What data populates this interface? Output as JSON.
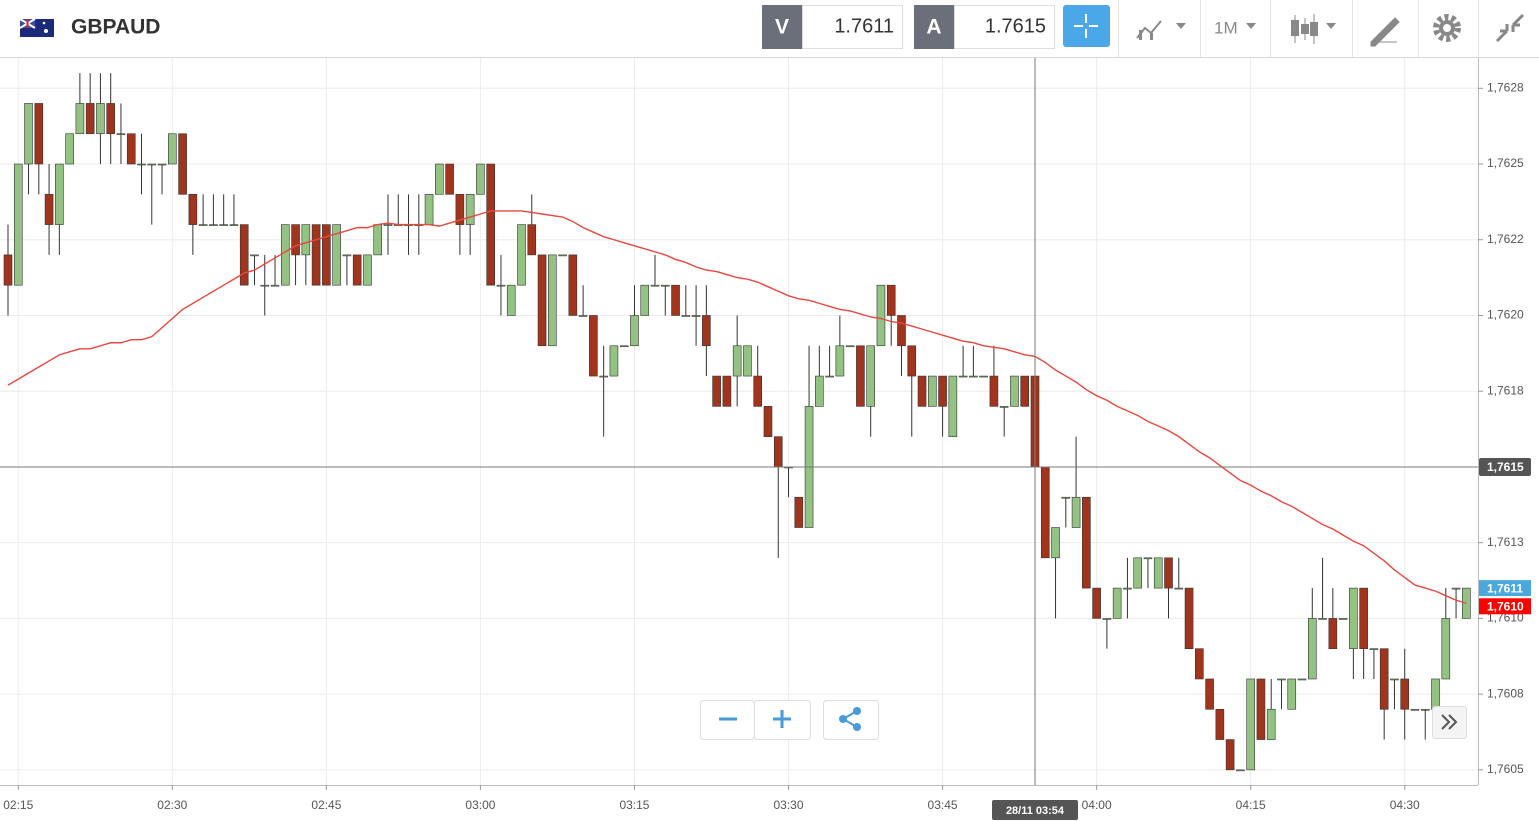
{
  "toolbar": {
    "symbol": "GBPAUD",
    "bid_label": "V",
    "bid": "1.7611",
    "ask_label": "A",
    "ask": "1.7615",
    "timeframe": "1M"
  },
  "chart_data": {
    "type": "candlestick",
    "categories": [
      null,
      "02:15",
      null,
      null,
      null,
      null,
      null,
      null,
      null,
      null,
      null,
      null,
      null,
      null,
      null,
      null,
      "02:30",
      null,
      null,
      null,
      null,
      null,
      null,
      null,
      null,
      null,
      null,
      null,
      null,
      null,
      null,
      "02:45",
      null,
      null,
      null,
      null,
      null,
      null,
      null,
      null,
      null,
      null,
      null,
      null,
      null,
      null,
      "03:00",
      null,
      null,
      null,
      null,
      null,
      null,
      null,
      null,
      null,
      null,
      null,
      null,
      null,
      null,
      "03:15",
      null,
      null,
      null,
      null,
      null,
      null,
      null,
      null,
      null,
      null,
      null,
      null,
      null,
      null,
      "03:30",
      null,
      null,
      null,
      null,
      null,
      null,
      null,
      null,
      null,
      null,
      null,
      null,
      null,
      null,
      "03:45",
      null,
      null,
      null,
      null,
      null,
      null,
      null,
      null,
      null,
      null,
      null,
      null,
      null,
      null,
      "04:00",
      null,
      null,
      null,
      null,
      null,
      null,
      null,
      null,
      null,
      null,
      null,
      null,
      null,
      null,
      "04:15",
      null,
      null,
      null,
      null,
      null,
      null,
      null,
      null,
      null,
      null,
      null,
      null,
      null,
      null,
      "04:30",
      null,
      null,
      null,
      null,
      null,
      null
    ],
    "open": [
      1.7622,
      1.7621,
      1.7625,
      1.7627,
      1.7624,
      1.7623,
      1.7625,
      1.7626,
      1.7627,
      1.7626,
      1.7627,
      1.7626,
      1.7626,
      1.7625,
      1.7625,
      1.7625,
      1.7625,
      1.7626,
      1.7624,
      1.7623,
      1.7623,
      1.7623,
      1.7623,
      1.7623,
      1.7622,
      1.7621,
      1.7621,
      1.7621,
      1.7623,
      1.7622,
      1.7623,
      1.7623,
      1.7621,
      1.7622,
      1.7622,
      1.7621,
      1.7622,
      1.7623,
      1.7623,
      1.7623,
      1.7623,
      1.7623,
      1.7624,
      1.7625,
      1.7624,
      1.7623,
      1.7624,
      1.7625,
      1.7621,
      1.762,
      1.7621,
      1.7623,
      1.7622,
      1.7619,
      1.7622,
      1.7622,
      1.762,
      1.762,
      1.7618,
      1.7618,
      1.7619,
      1.7619,
      1.762,
      1.7621,
      1.7621,
      1.7621,
      1.762,
      1.762,
      1.762,
      1.7618,
      1.7618,
      1.7618,
      1.7618,
      1.7618,
      1.7617,
      1.7616,
      1.7615,
      1.7614,
      1.7613,
      1.7617,
      1.7618,
      1.7618,
      1.7619,
      1.7619,
      1.7617,
      1.7619,
      1.7621,
      1.762,
      1.7619,
      1.7618,
      1.7617,
      1.7618,
      1.7616,
      1.7618,
      1.7618,
      1.7618,
      1.7618,
      1.7617,
      1.7617,
      1.7618,
      1.7618,
      1.7615,
      1.7612,
      1.7614,
      1.7613,
      1.7614,
      1.7611,
      1.761,
      1.761,
      1.7611,
      1.7611,
      1.7612,
      1.7611,
      1.7612,
      1.7611,
      1.7611,
      1.7609,
      1.7608,
      1.7607,
      1.7606,
      1.7605,
      1.7605,
      1.7608,
      1.7606,
      1.7608,
      1.7607,
      1.7608,
      1.7608,
      1.761,
      1.761,
      1.761,
      1.7609,
      1.7611,
      1.7609,
      1.7609,
      1.7608,
      1.7608,
      1.7607,
      1.7607,
      1.7607,
      1.7608,
      1.7611,
      1.761
    ],
    "high": [
      1.7623,
      1.7625,
      1.7627,
      1.7627,
      1.7625,
      1.7625,
      1.7626,
      1.7628,
      1.7628,
      1.7628,
      1.7628,
      1.7627,
      1.7626,
      1.7626,
      1.7625,
      1.7625,
      1.7626,
      1.7626,
      1.7624,
      1.7624,
      1.7624,
      1.7624,
      1.7624,
      1.7623,
      1.7622,
      1.7622,
      1.7622,
      1.7623,
      1.7623,
      1.7623,
      1.7623,
      1.7623,
      1.7623,
      1.7622,
      1.7622,
      1.7622,
      1.7623,
      1.7624,
      1.7624,
      1.7624,
      1.7624,
      1.7624,
      1.7625,
      1.7625,
      1.7624,
      1.7624,
      1.7625,
      1.7625,
      1.7622,
      1.7621,
      1.7623,
      1.7624,
      1.7622,
      1.7622,
      1.7622,
      1.7622,
      1.7621,
      1.762,
      1.7619,
      1.7619,
      1.7619,
      1.7621,
      1.7621,
      1.7622,
      1.7621,
      1.7621,
      1.7621,
      1.7621,
      1.7621,
      1.7618,
      1.7618,
      1.762,
      1.7619,
      1.7619,
      1.7617,
      1.7616,
      1.7615,
      1.7614,
      1.7619,
      1.7619,
      1.7619,
      1.762,
      1.7619,
      1.7619,
      1.7619,
      1.7621,
      1.7621,
      1.762,
      1.7619,
      1.7618,
      1.7618,
      1.7618,
      1.7618,
      1.7619,
      1.7619,
      1.7618,
      1.7619,
      1.7617,
      1.7618,
      1.7618,
      1.7618,
      1.7615,
      1.7613,
      1.7614,
      1.7616,
      1.7614,
      1.7611,
      1.761,
      1.7611,
      1.7612,
      1.7612,
      1.7612,
      1.7612,
      1.7612,
      1.7612,
      1.7611,
      1.7609,
      1.7608,
      1.7607,
      1.7606,
      1.7605,
      1.7608,
      1.7608,
      1.7608,
      1.7608,
      1.7608,
      1.7608,
      1.7611,
      1.7612,
      1.7611,
      1.761,
      1.7611,
      1.7611,
      1.7609,
      1.7609,
      1.7608,
      1.7609,
      1.7607,
      1.7607,
      1.7608,
      1.7611,
      1.7611,
      1.7611
    ],
    "low": [
      1.762,
      1.7621,
      1.7624,
      1.7624,
      1.7622,
      1.7622,
      1.7625,
      1.7626,
      1.7626,
      1.7625,
      1.7625,
      1.7625,
      1.7625,
      1.7624,
      1.7623,
      1.7624,
      1.7625,
      1.7624,
      1.7622,
      1.7623,
      1.7623,
      1.7623,
      1.7623,
      1.7621,
      1.7621,
      1.762,
      1.7621,
      1.7621,
      1.7621,
      1.7621,
      1.7621,
      1.7621,
      1.7621,
      1.7621,
      1.7621,
      1.7621,
      1.7622,
      1.7622,
      1.7623,
      1.7622,
      1.7622,
      1.7623,
      1.7624,
      1.7624,
      1.7622,
      1.7622,
      1.7624,
      1.7621,
      1.762,
      1.762,
      1.7621,
      1.7622,
      1.7619,
      1.7619,
      1.7622,
      1.762,
      1.762,
      1.7618,
      1.7616,
      1.7618,
      1.7619,
      1.7619,
      1.762,
      1.7621,
      1.762,
      1.762,
      1.762,
      1.7619,
      1.7618,
      1.7617,
      1.7617,
      1.7617,
      1.7618,
      1.7617,
      1.7616,
      1.7612,
      1.7614,
      1.7613,
      1.7613,
      1.7617,
      1.7618,
      1.7618,
      1.7619,
      1.7617,
      1.7616,
      1.7619,
      1.7619,
      1.7618,
      1.7616,
      1.7617,
      1.7617,
      1.7616,
      1.7616,
      1.7618,
      1.7618,
      1.7618,
      1.7617,
      1.7616,
      1.7617,
      1.7617,
      1.7615,
      1.7612,
      1.761,
      1.7613,
      1.7613,
      1.7611,
      1.761,
      1.7609,
      1.761,
      1.761,
      1.7611,
      1.7611,
      1.7611,
      1.761,
      1.7611,
      1.7609,
      1.7608,
      1.7607,
      1.7606,
      1.7605,
      1.7605,
      1.7605,
      1.7606,
      1.7606,
      1.7607,
      1.7607,
      1.7608,
      1.7608,
      1.761,
      1.7609,
      1.761,
      1.7608,
      1.7608,
      1.7608,
      1.7606,
      1.7607,
      1.7606,
      1.7607,
      1.7606,
      1.7607,
      1.7608,
      1.761,
      1.761
    ],
    "close": [
      1.7621,
      1.7625,
      1.7627,
      1.7625,
      1.7623,
      1.7625,
      1.7626,
      1.7627,
      1.7626,
      1.7627,
      1.7626,
      1.7626,
      1.7625,
      1.7625,
      1.7625,
      1.7625,
      1.7626,
      1.7624,
      1.7623,
      1.7623,
      1.7623,
      1.7623,
      1.7623,
      1.7621,
      1.7622,
      1.7621,
      1.7621,
      1.7623,
      1.7622,
      1.7623,
      1.7621,
      1.7621,
      1.7623,
      1.7622,
      1.7621,
      1.7622,
      1.7623,
      1.7623,
      1.7623,
      1.7623,
      1.7623,
      1.7624,
      1.7625,
      1.7624,
      1.7623,
      1.7624,
      1.7625,
      1.7621,
      1.7621,
      1.7621,
      1.7623,
      1.7622,
      1.7619,
      1.7622,
      1.7622,
      1.762,
      1.762,
      1.7618,
      1.7618,
      1.7619,
      1.7619,
      1.762,
      1.7621,
      1.7621,
      1.7621,
      1.762,
      1.762,
      1.762,
      1.7619,
      1.7617,
      1.7617,
      1.7619,
      1.7619,
      1.7617,
      1.7616,
      1.7615,
      1.7615,
      1.7613,
      1.7617,
      1.7618,
      1.7618,
      1.7619,
      1.7619,
      1.7617,
      1.7619,
      1.7621,
      1.762,
      1.7619,
      1.7618,
      1.7617,
      1.7618,
      1.7617,
      1.7618,
      1.7618,
      1.7618,
      1.7618,
      1.7617,
      1.7617,
      1.7618,
      1.7617,
      1.7615,
      1.7612,
      1.7613,
      1.7614,
      1.7614,
      1.7611,
      1.761,
      1.761,
      1.7611,
      1.7611,
      1.7612,
      1.7612,
      1.7612,
      1.7611,
      1.7611,
      1.7609,
      1.7608,
      1.7607,
      1.7606,
      1.7605,
      1.7605,
      1.7608,
      1.7606,
      1.7607,
      1.7608,
      1.7608,
      1.7608,
      1.761,
      1.761,
      1.7609,
      1.761,
      1.7611,
      1.7609,
      1.7609,
      1.7607,
      1.7608,
      1.7607,
      1.7607,
      1.7607,
      1.7608,
      1.761,
      1.7611,
      1.7611
    ],
    "up_color": "#93c282",
    "down_color": "#a0341c",
    "wick_color": "#333333",
    "moving_average": {
      "color": "#e8473f",
      "values": [
        1.76177,
        1.76179,
        1.76181,
        1.76183,
        1.76185,
        1.76187,
        1.76188,
        1.76189,
        1.76189,
        1.7619,
        1.76191,
        1.76191,
        1.76192,
        1.76192,
        1.76193,
        1.76196,
        1.76199,
        1.76202,
        1.76204,
        1.76206,
        1.76208,
        1.7621,
        1.76212,
        1.76214,
        1.76215,
        1.76217,
        1.76219,
        1.76221,
        1.76223,
        1.76224,
        1.76225,
        1.76226,
        1.76227,
        1.76228,
        1.76229,
        1.76229,
        1.7623,
        1.762305,
        1.7623,
        1.7623,
        1.7623,
        1.7623,
        1.762295,
        1.762305,
        1.762315,
        1.762325,
        1.762335,
        1.762345,
        1.762345,
        1.762345,
        1.762345,
        1.76234,
        1.762335,
        1.76233,
        1.762325,
        1.76231,
        1.76229,
        1.762275,
        1.76226,
        1.76225,
        1.76224,
        1.76223,
        1.76222,
        1.76221,
        1.7622,
        1.762185,
        1.762175,
        1.76216,
        1.76215,
        1.762145,
        1.762135,
        1.762125,
        1.76212,
        1.76211,
        1.762095,
        1.76208,
        1.762065,
        1.762055,
        1.76205,
        1.76204,
        1.76203,
        1.76202,
        1.762015,
        1.762005,
        1.761995,
        1.76199,
        1.76198,
        1.761975,
        1.761965,
        1.761955,
        1.761945,
        1.761935,
        1.761925,
        1.761915,
        1.76191,
        1.7619,
        1.761895,
        1.76189,
        1.76188,
        1.76187,
        1.761865,
        1.761845,
        1.76182,
        1.7618,
        1.76178,
        1.761755,
        1.761735,
        1.76172,
        1.7617,
        1.761685,
        1.76167,
        1.76165,
        1.761635,
        1.76162,
        1.7616,
        1.761575,
        1.76155,
        1.76153,
        1.761505,
        1.76148,
        1.761455,
        1.76144,
        1.76142,
        1.761405,
        1.761385,
        1.76137,
        1.76135,
        1.76133,
        1.76131,
        1.761295,
        1.761275,
        1.761255,
        1.76124,
        1.761215,
        1.76119,
        1.76116,
        1.761135,
        1.76111,
        1.7611,
        1.76109,
        1.761075,
        1.76106,
        1.76105
      ]
    },
    "ylim": [
      1.76045,
      1.76285
    ],
    "yticks": [
      {
        "value": 1.7605,
        "label": "1,7605"
      },
      {
        "value": 1.76075,
        "label": "1,7608"
      },
      {
        "value": 1.761,
        "label": "1,7610"
      },
      {
        "value": 1.76125,
        "label": "1,7613"
      },
      {
        "value": 1.7615,
        "label": "1,7615"
      },
      {
        "value": 1.76175,
        "label": "1,7618"
      },
      {
        "value": 1.762,
        "label": "1,7620"
      },
      {
        "value": 1.76225,
        "label": "1,7622"
      },
      {
        "value": 1.7625,
        "label": "1,7625"
      },
      {
        "value": 1.76275,
        "label": "1,7628"
      }
    ],
    "grid": true,
    "price_labels": [
      {
        "value": 1.7611,
        "label": "1,7611",
        "color": "#4aa8dc"
      },
      {
        "value": 1.76104,
        "label": "1,7610",
        "color": "#ff0000"
      }
    ],
    "crosshair": {
      "label": "28/11 03:54",
      "price": {
        "value": 1.7615,
        "label": "1,7615"
      }
    }
  }
}
